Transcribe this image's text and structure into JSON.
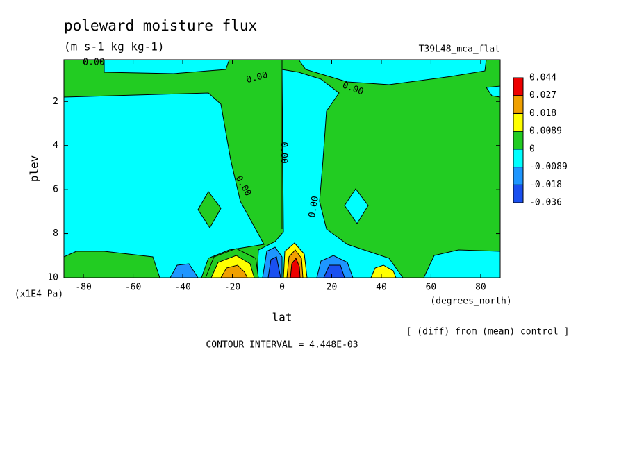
{
  "chart_data": {
    "type": "contour",
    "title": "poleward moisture flux",
    "subtitle": "(m s-1 kg kg-1)",
    "run_label": "T39L48_mca_flat",
    "x_label": "lat",
    "y_label": "plev",
    "x_unit": "(degrees_north)",
    "y_unit": "(x1E4 Pa)",
    "xlim": [
      -87.86,
      87.86
    ],
    "ylim": [
      10,
      0.1
    ],
    "xticks": [
      -80,
      -60,
      -40,
      -20,
      0,
      20,
      40,
      60,
      80
    ],
    "yticks": [
      2,
      4,
      6,
      8,
      10
    ],
    "contour_label": "0.00",
    "contour_interval": "CONTOUR INTERVAL = 4.448E-03",
    "note": "[ (diff) from (mean) control ]",
    "colorbar": {
      "levels": [
        -0.036,
        -0.018,
        -0.0089,
        0,
        0.0089,
        0.018,
        0.027,
        0.044
      ],
      "colors": [
        "#1a50f0",
        "#1e96ff",
        "#00ffff",
        "#22cc22",
        "#ffff00",
        "#f0a000",
        "#ee0000"
      ]
    }
  }
}
